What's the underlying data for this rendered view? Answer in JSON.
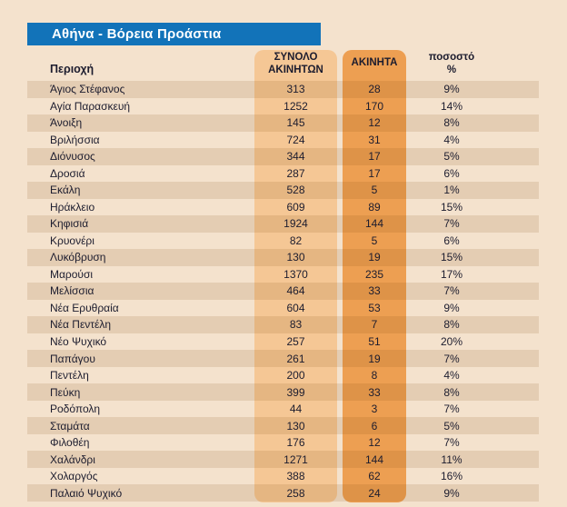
{
  "title": "Αθήνα - Βόρεια Προάστια",
  "columns": {
    "region": "Περιοχή",
    "total_line1": "ΣΥΝΟΛΟ",
    "total_line2": "ΑΚΙΝΗΤΩΝ",
    "listings": "ΑΚΙΝΗΤΑ",
    "percent_line1": "ποσοστό",
    "percent_line2": "%"
  },
  "colors": {
    "background": "#f4e2cd",
    "title_bar_blue": "#1273b9",
    "stripe_tint": "#e9ceb1",
    "band_total_orange": "#f5c795",
    "band_listings_orange": "#ed9f52",
    "text": "#1c1c2e",
    "title_text": "#ffffff"
  },
  "rows": [
    {
      "region": "Άγιος Στέφανος",
      "total": "313",
      "listings": "28",
      "percent": "9%"
    },
    {
      "region": "Αγία Παρασκευή",
      "total": "1252",
      "listings": "170",
      "percent": "14%"
    },
    {
      "region": "Άνοιξη",
      "total": "145",
      "listings": "12",
      "percent": "8%"
    },
    {
      "region": "Βριλήσσια",
      "total": "724",
      "listings": "31",
      "percent": "4%"
    },
    {
      "region": "Διόνυσος",
      "total": "344",
      "listings": "17",
      "percent": "5%"
    },
    {
      "region": "Δροσιά",
      "total": "287",
      "listings": "17",
      "percent": "6%"
    },
    {
      "region": "Εκάλη",
      "total": "528",
      "listings": "5",
      "percent": "1%"
    },
    {
      "region": "Ηράκλειο",
      "total": "609",
      "listings": "89",
      "percent": "15%"
    },
    {
      "region": "Κηφισιά",
      "total": "1924",
      "listings": "144",
      "percent": "7%"
    },
    {
      "region": "Κρυονέρι",
      "total": "82",
      "listings": "5",
      "percent": "6%"
    },
    {
      "region": "Λυκόβρυση",
      "total": "130",
      "listings": "19",
      "percent": "15%"
    },
    {
      "region": "Μαρούσι",
      "total": "1370",
      "listings": "235",
      "percent": "17%"
    },
    {
      "region": "Μελίσσια",
      "total": "464",
      "listings": "33",
      "percent": "7%"
    },
    {
      "region": "Νέα Ερυθραία",
      "total": "604",
      "listings": "53",
      "percent": "9%"
    },
    {
      "region": "Νέα Πεντέλη",
      "total": "83",
      "listings": "7",
      "percent": "8%"
    },
    {
      "region": "Νέο Ψυχικό",
      "total": "257",
      "listings": "51",
      "percent": "20%"
    },
    {
      "region": "Παπάγου",
      "total": "261",
      "listings": "19",
      "percent": "7%"
    },
    {
      "region": "Πεντέλη",
      "total": "200",
      "listings": "8",
      "percent": "4%"
    },
    {
      "region": "Πεύκη",
      "total": "399",
      "listings": "33",
      "percent": "8%"
    },
    {
      "region": "Ροδόπολη",
      "total": "44",
      "listings": "3",
      "percent": "7%"
    },
    {
      "region": "Σταμάτα",
      "total": "130",
      "listings": "6",
      "percent": "5%"
    },
    {
      "region": "Φιλοθέη",
      "total": "176",
      "listings": "12",
      "percent": "7%"
    },
    {
      "region": "Χαλάνδρι",
      "total": "1271",
      "listings": "144",
      "percent": "11%"
    },
    {
      "region": "Χολαργός",
      "total": "388",
      "listings": "62",
      "percent": "16%"
    },
    {
      "region": "Παλαιό Ψυχικό",
      "total": "258",
      "listings": "24",
      "percent": "9%"
    }
  ],
  "chart_data": {
    "type": "table",
    "title": "Αθήνα - Βόρεια Προάστια",
    "columns": [
      "Περιοχή",
      "ΣΥΝΟΛΟ ΑΚΙΝΗΤΩΝ",
      "ΑΚΙΝΗΤΑ",
      "ποσοστό %"
    ],
    "rows": [
      [
        "Άγιος Στέφανος",
        313,
        28,
        "9%"
      ],
      [
        "Αγία Παρασκευή",
        1252,
        170,
        "14%"
      ],
      [
        "Άνοιξη",
        145,
        12,
        "8%"
      ],
      [
        "Βριλήσσια",
        724,
        31,
        "4%"
      ],
      [
        "Διόνυσος",
        344,
        17,
        "5%"
      ],
      [
        "Δροσιά",
        287,
        17,
        "6%"
      ],
      [
        "Εκάλη",
        528,
        5,
        "1%"
      ],
      [
        "Ηράκλειο",
        609,
        89,
        "15%"
      ],
      [
        "Κηφισιά",
        1924,
        144,
        "7%"
      ],
      [
        "Κρυονέρι",
        82,
        5,
        "6%"
      ],
      [
        "Λυκόβρυση",
        130,
        19,
        "15%"
      ],
      [
        "Μαρούσι",
        1370,
        235,
        "17%"
      ],
      [
        "Μελίσσια",
        464,
        33,
        "7%"
      ],
      [
        "Νέα Ερυθραία",
        604,
        53,
        "9%"
      ],
      [
        "Νέα Πεντέλη",
        83,
        7,
        "8%"
      ],
      [
        "Νέο Ψυχικό",
        257,
        51,
        "20%"
      ],
      [
        "Παπάγου",
        261,
        19,
        "7%"
      ],
      [
        "Πεντέλη",
        200,
        8,
        "4%"
      ],
      [
        "Πεύκη",
        399,
        33,
        "8%"
      ],
      [
        "Ροδόπολη",
        44,
        3,
        "7%"
      ],
      [
        "Σταμάτα",
        130,
        6,
        "5%"
      ],
      [
        "Φιλοθέη",
        176,
        12,
        "7%"
      ],
      [
        "Χαλάνδρι",
        1271,
        144,
        "11%"
      ],
      [
        "Χολαργός",
        388,
        62,
        "16%"
      ],
      [
        "Παλαιό Ψυχικό",
        258,
        24,
        "9%"
      ]
    ]
  }
}
